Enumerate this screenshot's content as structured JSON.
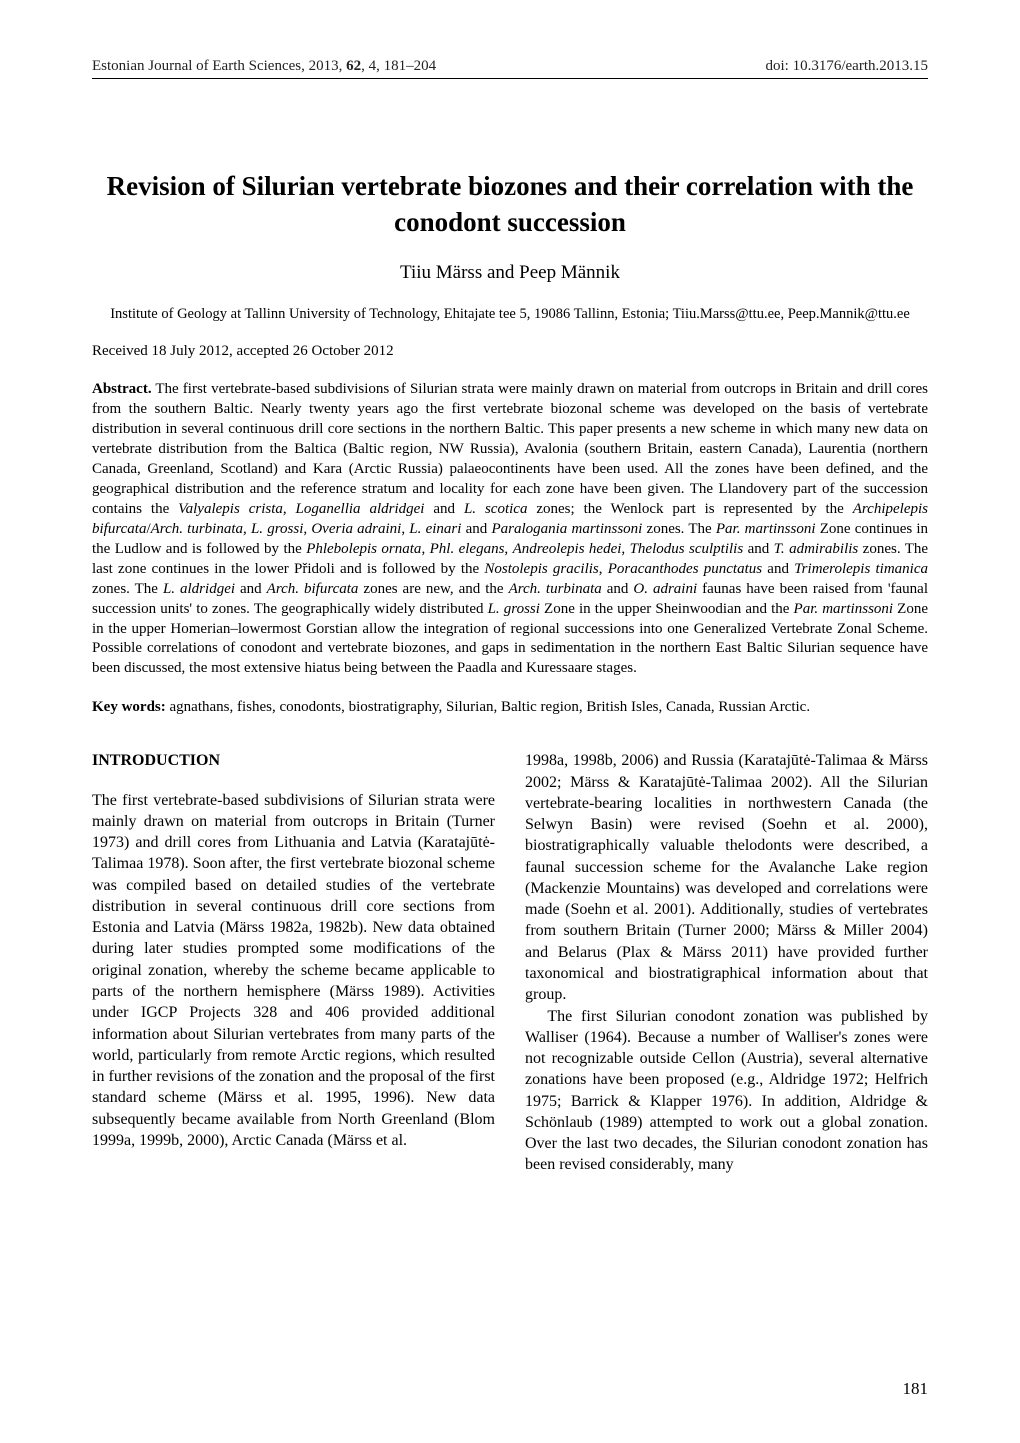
{
  "header": {
    "journal": "Estonian Journal of Earth Sciences, 2013, ",
    "volume": "62",
    "issue_pages": ", 4, 181–204",
    "doi": "doi: 10.3176/earth.2013.15"
  },
  "title_line1": "Revision  of  Silurian  vertebrate  biozones  and  their  correlation  with  the",
  "title_line2": "conodont  succession",
  "authors": "Tiiu Märss and Peep Männik",
  "affiliation": "Institute of Geology at Tallinn University of Technology, Ehitajate tee 5, 19086 Tallinn, Estonia; Tiiu.Marss@ttu.ee, Peep.Mannik@ttu.ee",
  "received": "Received 18 July 2012, accepted 26 October 2012",
  "abstract": {
    "label": "Abstract.",
    "s1": " The first vertebrate-based subdivisions of Silurian strata were mainly drawn on material from outcrops in Britain and drill cores from the southern Baltic. Nearly twenty years ago the first vertebrate biozonal scheme was developed on the basis of vertebrate distribution in several continuous drill core sections in the northern Baltic. This paper presents a new scheme in which many new data on vertebrate distribution from the Baltica (Baltic region, NW Russia), Avalonia (southern Britain, eastern Canada), Laurentia (northern Canada, Greenland, Scotland) and Kara (Arctic Russia) palaeocontinents have been used. All the zones have been defined, and the geographical distribution and the reference stratum and locality for each zone have been given. The Llandovery part of the succession contains the ",
    "i1": "Valyalepis crista",
    "s2": ", ",
    "i2": "Loganellia aldridgei",
    "s3": " and ",
    "i3": "L. scotica",
    "s4": " zones; the Wenlock part is represented by the ",
    "i4": "Archipelepis bifurcata",
    "s5": "/",
    "i5": "Arch. turbinata",
    "s6": ", ",
    "i6": "L. grossi",
    "s7": ", ",
    "i7": "Overia adraini",
    "s8": ", ",
    "i8": "L. einari",
    "s9": " and ",
    "i9": "Paralogania martinssoni",
    "s10": " zones. The ",
    "i10": "Par. martinssoni",
    "s11": " Zone continues in the Ludlow and is followed by the ",
    "i11": "Phlebolepis ornata",
    "s12": ", ",
    "i12": "Phl. elegans",
    "s13": ", ",
    "i13": "Andreolepis hedei",
    "s14": ", ",
    "i14": "Thelodus sculptilis",
    "s15": " and ",
    "i15": "T. admirabilis",
    "s16": " zones. The last zone continues in the lower Přidoli and is followed by the ",
    "i16": "Nostolepis gracilis",
    "s17": ", ",
    "i17": "Poracanthodes punctatus",
    "s18": " and ",
    "i18": "Trimerolepis timanica",
    "s19": " zones. The ",
    "i19": "L. aldridgei",
    "s20": " and ",
    "i20": "Arch. bifurcata",
    "s21": " zones are new, and the ",
    "i21": "Arch. turbinata",
    "s22": " and ",
    "i22": "O. adraini",
    "s23": " faunas have been raised from 'faunal succession units' to zones. The geographically widely distributed ",
    "i23": "L. grossi",
    "s24": " Zone in the upper Sheinwoodian and the ",
    "i24": "Par. martinssoni",
    "s25": " Zone in the upper Homerian–lowermost Gorstian allow the integration of regional successions into one Generalized Vertebrate Zonal Scheme. Possible correlations of conodont and vertebrate biozones, and gaps in sedimentation in the northern East Baltic Silurian sequence have been discussed, the most extensive hiatus being between the Paadla and Kuressaare stages."
  },
  "keywords": {
    "label": "Key words:",
    "text": " agnathans, fishes, conodonts, biostratigraphy, Silurian, Baltic region, British Isles, Canada, Russian Arctic."
  },
  "section_heading": "INTRODUCTION",
  "para1": "The first vertebrate-based subdivisions of Silurian strata were mainly drawn on material from outcrops in Britain (Turner 1973) and drill cores from Lithuania and Latvia (Karatajūtė-Talimaa 1978). Soon after, the first vertebrate biozonal scheme was compiled based on detailed studies of the vertebrate distribution in several continuous drill core sections from Estonia and Latvia (Märss 1982a, 1982b). New data obtained during later studies prompted some modifications of the original zonation, whereby the scheme became applicable to parts of the northern hemisphere (Märss 1989). Activities under IGCP Projects 328 and 406 provided additional information about Silurian vertebrates from many parts of the world, particularly from remote Arctic regions, which resulted in further revisions of the zonation and the proposal of the first standard scheme (Märss et al. 1995, 1996). New data subsequently became available from North Greenland (Blom 1999a, 1999b, 2000), Arctic Canada (Märss et al.",
  "para1_cont": "1998a, 1998b, 2006) and Russia (Karatajūtė-Talimaa & Märss 2002; Märss & Karatajūtė-Talimaa 2002). All the Silurian vertebrate-bearing localities in northwestern Canada (the Selwyn Basin) were revised (Soehn et al. 2000), biostratigraphically valuable thelodonts were de­scribed, a faunal succession scheme for the Avalanche Lake region (Mackenzie Mountains) was developed and correlations were made (Soehn et al. 2001). Additionally, studies of vertebrates from southern Britain (Turner 2000; Märss & Miller 2004) and Belarus (Plax & Märss 2011) have provided further taxonomical and biostrati­graphical information about that group.",
  "para2": "The first Silurian conodont zonation was published by Walliser (1964). Because a number of Walliser's zones were not recognizable outside Cellon (Austria), several alternative zonations have been proposed (e.g., Aldridge 1972; Helfrich 1975; Barrick & Klapper 1976). In addition, Aldridge & Schönlaub (1989) attempted to work out a global zonation. Over the last two decades, the Silurian conodont zonation has been revised considerably, many",
  "page_number": "181"
}
